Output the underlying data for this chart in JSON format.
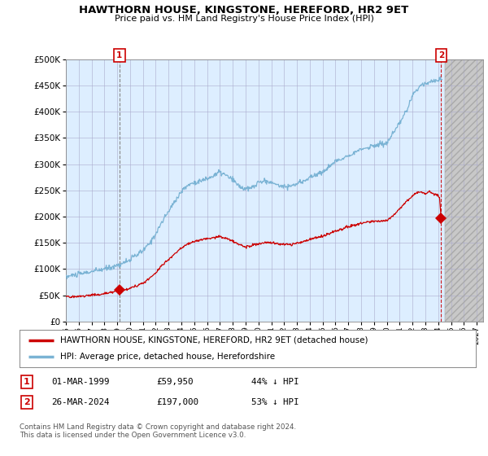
{
  "title": "HAWTHORN HOUSE, KINGSTONE, HEREFORD, HR2 9ET",
  "subtitle": "Price paid vs. HM Land Registry's House Price Index (HPI)",
  "xlim": [
    1995.0,
    2027.5
  ],
  "ylim": [
    0,
    500000
  ],
  "yticks": [
    0,
    50000,
    100000,
    150000,
    200000,
    250000,
    300000,
    350000,
    400000,
    450000,
    500000
  ],
  "xtick_years": [
    1995,
    1996,
    1997,
    1998,
    1999,
    2000,
    2001,
    2002,
    2003,
    2004,
    2005,
    2006,
    2007,
    2008,
    2009,
    2010,
    2011,
    2012,
    2013,
    2014,
    2015,
    2016,
    2017,
    2018,
    2019,
    2020,
    2021,
    2022,
    2023,
    2024,
    2025,
    2026,
    2027
  ],
  "hpi_color": "#7ab3d4",
  "property_color": "#cc0000",
  "marker1_date": 1999.17,
  "marker1_value": 59950,
  "marker2_date": 2024.23,
  "marker2_value": 197000,
  "vline1_x": 1999.17,
  "vline2_x": 2024.23,
  "chart_bg": "#ddeeff",
  "hatch_bg": "#d0d0d0",
  "legend_label1": "HAWTHORN HOUSE, KINGSTONE, HEREFORD, HR2 9ET (detached house)",
  "legend_label2": "HPI: Average price, detached house, Herefordshire",
  "table_row1": [
    "1",
    "01-MAR-1999",
    "£59,950",
    "44% ↓ HPI"
  ],
  "table_row2": [
    "2",
    "26-MAR-2024",
    "£197,000",
    "53% ↓ HPI"
  ],
  "footnote": "Contains HM Land Registry data © Crown copyright and database right 2024.\nThis data is licensed under the Open Government Licence v3.0.",
  "background_color": "#ffffff",
  "grid_color": "#aaaacc"
}
